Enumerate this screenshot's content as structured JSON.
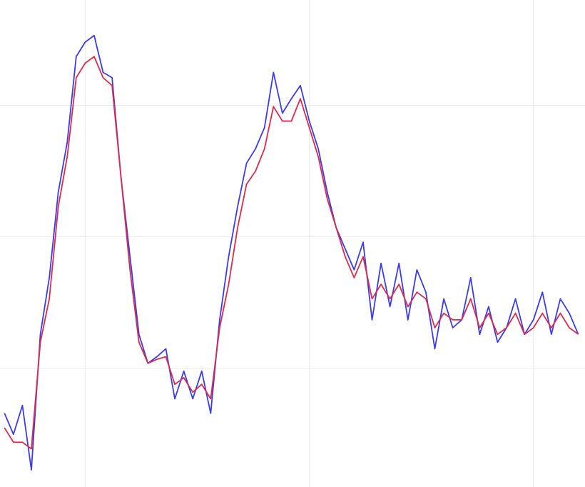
{
  "chart_data": {
    "type": "line",
    "x": [
      0.64,
      0.68,
      0.72,
      0.76,
      0.8,
      0.84,
      0.88,
      0.92,
      0.96,
      1,
      1.04,
      1.08,
      1.12,
      1.16,
      1.2,
      1.24,
      1.28,
      1.32,
      1.36,
      1.4,
      1.44,
      1.48,
      1.52,
      1.56,
      1.6,
      1.64,
      1.68,
      1.72,
      1.76,
      1.8,
      1.84,
      1.88,
      1.92,
      1.96,
      2,
      2.04,
      2.08,
      2.12,
      2.16,
      2.2,
      2.24,
      2.28,
      2.32,
      2.36,
      2.4,
      2.44,
      2.48,
      2.52,
      2.56,
      2.6,
      2.64,
      2.68,
      2.72,
      2.76,
      2.8,
      2.84,
      2.88,
      2.92,
      2.96,
      3,
      3.04,
      3.08,
      3.12,
      3.16,
      3.2
    ],
    "series": [
      {
        "color": "#3b3bf0",
        "values": [
          -1.34,
          -1.5,
          -1.28,
          -1.77,
          -0.74,
          -0.31,
          0.34,
          0.72,
          1.37,
          1.48,
          1.53,
          1.25,
          1.21,
          0.45,
          -0.15,
          -0.74,
          -0.96,
          -0.91,
          -0.85,
          -1.23,
          -1.02,
          -1.23,
          -1.02,
          -1.34,
          -0.63,
          -0.15,
          0.23,
          0.56,
          0.67,
          0.83,
          1.25,
          0.94,
          1.05,
          1.15,
          0.88,
          0.67,
          0.34,
          0.07,
          -0.09,
          -0.25,
          -0.04,
          -0.63,
          -0.2,
          -0.53,
          -0.2,
          -0.63,
          -0.25,
          -0.42,
          -0.85,
          -0.47,
          -0.69,
          -0.63,
          -0.31,
          -0.74,
          -0.53,
          -0.8,
          -0.69,
          -0.47,
          -0.74,
          -0.63,
          -0.42,
          -0.74,
          -0.47,
          -0.58,
          -0.74
        ]
      },
      {
        "color": "#e02a4a",
        "values": [
          -1.45,
          -1.56,
          -1.56,
          -1.61,
          -0.8,
          -0.47,
          0.23,
          0.61,
          1.21,
          1.32,
          1.37,
          1.21,
          1.15,
          0.45,
          -0.25,
          -0.8,
          -0.96,
          -0.93,
          -0.91,
          -1.12,
          -1.07,
          -1.18,
          -1.12,
          -1.23,
          -0.69,
          -0.36,
          0.07,
          0.4,
          0.5,
          0.67,
          0.99,
          0.88,
          0.88,
          1.05,
          0.83,
          0.61,
          0.29,
          0.07,
          -0.15,
          -0.31,
          -0.15,
          -0.47,
          -0.36,
          -0.47,
          -0.36,
          -0.53,
          -0.42,
          -0.47,
          -0.69,
          -0.58,
          -0.63,
          -0.63,
          -0.47,
          -0.69,
          -0.58,
          -0.74,
          -0.69,
          -0.58,
          -0.74,
          -0.69,
          -0.58,
          -0.69,
          -0.58,
          -0.69,
          -0.74
        ]
      }
    ],
    "xlim": [
      0.62,
      3.23
    ],
    "ylim": [
      -1.9,
      1.8
    ],
    "xticks": [
      1,
      2,
      3
    ],
    "yticks": [
      -1,
      0,
      1
    ],
    "grid": true
  }
}
